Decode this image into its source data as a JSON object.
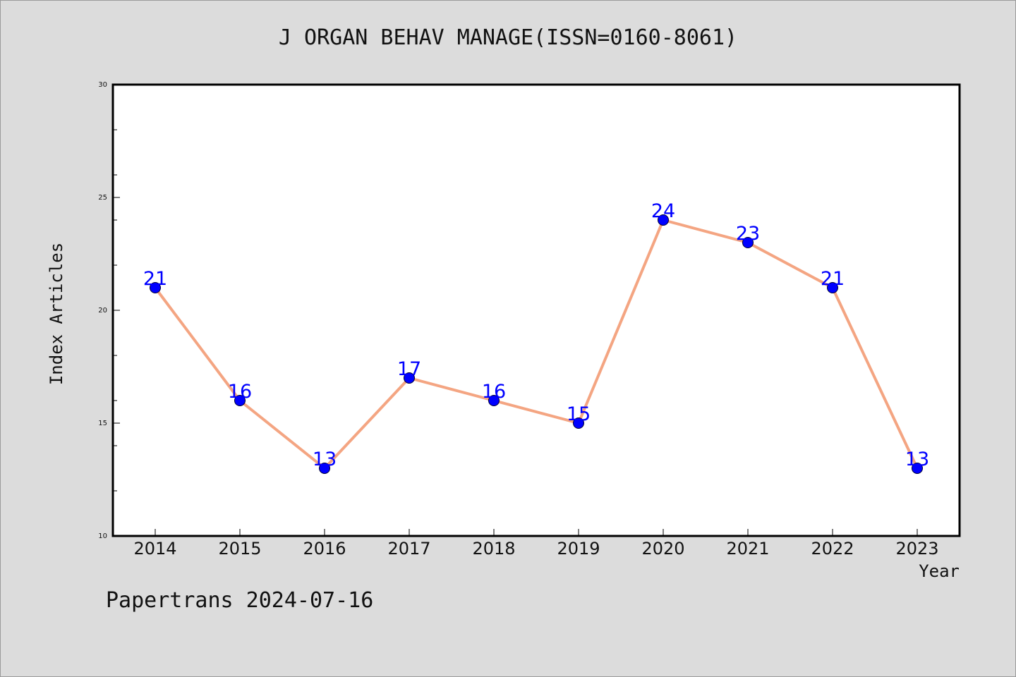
{
  "page": {
    "title": "J ORGAN BEHAV MANAGE(ISSN=0160-8061)",
    "footer": "Papertrans 2024-07-16"
  },
  "chart_data": {
    "type": "line",
    "title": "J ORGAN BEHAV MANAGE(ISSN=0160-8061)",
    "xlabel": "Year",
    "ylabel": "Index Articles",
    "categories": [
      "2014",
      "2015",
      "2016",
      "2017",
      "2018",
      "2019",
      "2020",
      "2021",
      "2022",
      "2023"
    ],
    "values": [
      21,
      16,
      13,
      17,
      16,
      15,
      24,
      23,
      21,
      13
    ],
    "data_labels": [
      "21",
      "16",
      "13",
      "17",
      "16",
      "15",
      "24",
      "23",
      "21",
      "13"
    ],
    "ylim": [
      10,
      30
    ],
    "yticks": [
      "10",
      "15",
      "20",
      "25",
      "30"
    ],
    "grid": false,
    "legend": "none",
    "colors": {
      "line": "#f4a582",
      "marker": "#0000ff",
      "data_label": "#0000ff",
      "plot_background": "#ffffff",
      "page_background": "#dcdcdc"
    }
  }
}
